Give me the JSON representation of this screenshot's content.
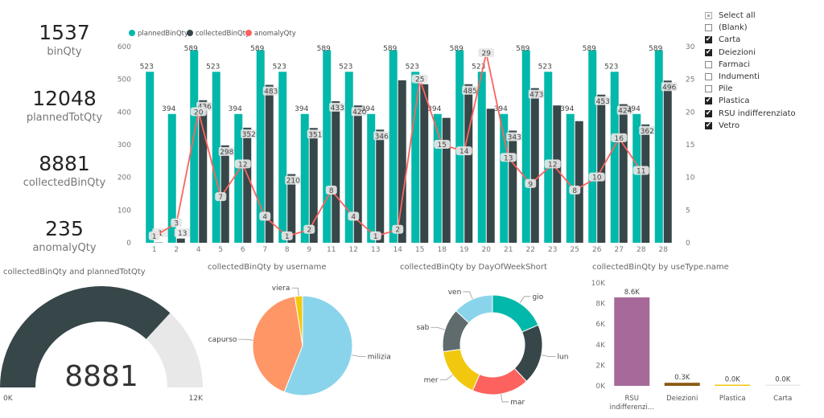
{
  "kpis": [
    {
      "value": "1537",
      "label": "binQty"
    },
    {
      "value": "12048",
      "label": "plannedTotQty"
    },
    {
      "value": "8881",
      "label": "collectedBinQty"
    },
    {
      "value": "235",
      "label": "anomalyQty"
    }
  ],
  "slicer": {
    "items": [
      {
        "label": "Select all",
        "state": "partial"
      },
      {
        "label": "(Blank)",
        "state": "off"
      },
      {
        "label": "Carta",
        "state": "on"
      },
      {
        "label": "Deiezioni",
        "state": "on"
      },
      {
        "label": "Farmaci",
        "state": "off"
      },
      {
        "label": "Indumenti",
        "state": "off"
      },
      {
        "label": "Pile",
        "state": "off"
      },
      {
        "label": "Plastica",
        "state": "on"
      },
      {
        "label": "RSU indifferenziato",
        "state": "on"
      },
      {
        "label": "Vetro",
        "state": "on"
      }
    ]
  },
  "colors": {
    "teal": "#01B8AA",
    "dark": "#374649",
    "red": "#FD625E",
    "gray": "#E8E8E8"
  },
  "chart_data": [
    {
      "type": "bar",
      "title": "",
      "categories": [
        "1",
        "2",
        "4",
        "5",
        "6",
        "7",
        "8",
        "9",
        "11",
        "12",
        "13",
        "14",
        "15",
        "18",
        "19",
        "20",
        "21",
        "22",
        "23",
        "25",
        "26",
        "27",
        "28"
      ],
      "series": [
        {
          "name": "plannedBinQty",
          "axis": "left",
          "values": [
            523,
            394,
            589,
            523,
            394,
            589,
            523,
            394,
            589,
            523,
            394,
            589,
            523,
            394,
            589,
            523,
            394,
            589,
            523,
            394,
            589,
            523,
            394
          ]
        },
        {
          "name": "collectedBinQty",
          "axis": "left",
          "values": [
            1,
            13,
            436,
            298,
            352,
            483,
            210,
            351,
            433,
            420,
            346,
            497,
            485,
            382,
            485,
            410,
            343,
            473,
            420,
            372,
            453,
            424,
            362
          ]
        },
        {
          "name": "anomalyQty",
          "axis": "right",
          "type": "line",
          "values": [
            1,
            3,
            20,
            7,
            12,
            4,
            1,
            2,
            8,
            4,
            1,
            2,
            25,
            15,
            14,
            29,
            13,
            9,
            12,
            8,
            10,
            16,
            11
          ]
        }
      ],
      "bar_labels": {
        "planned": [
          "523",
          "394",
          "589",
          "523",
          "394",
          "589",
          "523",
          "394",
          "589",
          "523",
          "394",
          "589",
          "523",
          "394",
          "589",
          "523",
          "394",
          "589",
          "523",
          "394",
          "589",
          "523",
          "394"
        ],
        "collected": [
          "1",
          "13",
          "436",
          "298",
          "352",
          "483",
          "210",
          "351",
          "433",
          "420",
          "346",
          "",
          "",
          "",
          "485",
          "",
          "343",
          "473",
          "",
          "",
          "453",
          "424",
          "362"
        ],
        "extra": {
          "cat": "28",
          "planned": "589",
          "collected": "496"
        }
      },
      "line_labels": [
        "1",
        "3",
        "20",
        "7",
        "12",
        "4",
        "1",
        "2",
        "8",
        "4",
        "1",
        "2",
        "25",
        "15",
        "14",
        "29",
        "13",
        "9",
        "12",
        "8",
        "10",
        "16",
        "11"
      ],
      "left_ticks": [
        "0",
        "100",
        "200",
        "300",
        "400",
        "500",
        "600"
      ],
      "right_ticks": [
        "0",
        "5",
        "10",
        "15",
        "20",
        "25",
        "30"
      ],
      "ylim": [
        0,
        600
      ],
      "y2lim": [
        0,
        30
      ],
      "legend": "top-left"
    },
    {
      "type": "gauge",
      "title": "collectedBinQty and plannedTotQty",
      "value": 8881,
      "value_label": "8881",
      "min_label": "0K",
      "max_label": "12K",
      "min": 0,
      "max": 12048
    },
    {
      "type": "pie",
      "title": "collectedBinQty by username",
      "slices": [
        {
          "label": "milizia",
          "value": 56,
          "color": "#8AD4EB"
        },
        {
          "label": "capurso",
          "value": 41.5,
          "color": "#FE9666"
        },
        {
          "label": "viera",
          "value": 2.5,
          "color": "#F2C80F"
        }
      ]
    },
    {
      "type": "pie",
      "donut": true,
      "title": "collectedBinQty by DayOfWeekShort",
      "slices": [
        {
          "label": "gio",
          "value": 17,
          "color": "#01B8AA"
        },
        {
          "label": "lun",
          "value": 18,
          "color": "#374649"
        },
        {
          "label": "mar",
          "value": 17,
          "color": "#FD625E"
        },
        {
          "label": "mer",
          "value": 15,
          "color": "#F2C80F"
        },
        {
          "label": "sab",
          "value": 13,
          "color": "#5F6B6D"
        },
        {
          "label": "ven",
          "value": 12,
          "color": "#8AD4EB"
        }
      ]
    },
    {
      "type": "bar",
      "title": "collectedBinQty by useType.name",
      "categories": [
        "RSU indifferenzi...",
        "Deiezioni",
        "Plastica",
        "Carta"
      ],
      "values": [
        8600,
        300,
        40,
        20
      ],
      "data_labels": [
        "8.6K",
        "0.3K",
        "0.0K",
        "0.0K"
      ],
      "colors": [
        "#A66999",
        "#8B5A12",
        "#F2C80F",
        "#E8E8E8"
      ],
      "y_ticks": [
        "0K",
        "2K",
        "4K",
        "6K",
        "8K",
        "10K"
      ],
      "ylim": [
        0,
        10000
      ]
    }
  ]
}
